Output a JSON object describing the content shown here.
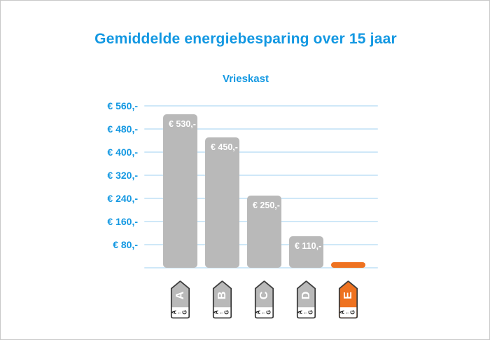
{
  "page": {
    "background_color": "#ffffff",
    "frame_border_color": "#c8c8c8"
  },
  "chart_data": {
    "type": "bar",
    "title": "Gemiddelde energiebesparing over 15 jaar",
    "subtitle": "Vrieskast",
    "categories": [
      "A",
      "B",
      "C",
      "D",
      "E"
    ],
    "values": [
      530,
      450,
      250,
      110,
      20
    ],
    "bar_labels": [
      "€ 530,-",
      "€ 450,-",
      "€ 250,-",
      "€ 110,-",
      ""
    ],
    "bar_colors": [
      "#b9b9b9",
      "#b9b9b9",
      "#b9b9b9",
      "#b9b9b9",
      "#ee7220"
    ],
    "y_tick_labels": [
      "€ 560,-",
      "€ 480,-",
      "€ 400,-",
      "€ 320,-",
      "€ 240,-",
      "€ 160,-",
      "€ 80,-"
    ],
    "ylim": [
      0,
      600
    ],
    "y_tick_step": 80,
    "xlabel": "",
    "ylabel": "",
    "grid": true,
    "legend": false,
    "accent_color": "#1398e2",
    "gridline_color": "#cfe8f8",
    "x_axis_icons": "eu-energy-class-tag",
    "energy_tag_scale_text": {
      "from": "A",
      "arrow": "←",
      "to": "G"
    },
    "energy_tag_border_color": "#3d3d3d"
  }
}
